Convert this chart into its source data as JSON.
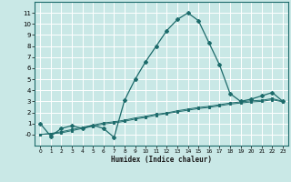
{
  "xlabel": "Humidex (Indice chaleur)",
  "ylabel": "",
  "xlim": [
    -0.5,
    23.5
  ],
  "ylim": [
    -1.0,
    12.0
  ],
  "yticks": [
    0,
    1,
    2,
    3,
    4,
    5,
    6,
    7,
    8,
    9,
    10,
    11
  ],
  "ytick_labels": [
    "-0",
    "1",
    "2",
    "3",
    "4",
    "5",
    "6",
    "7",
    "8",
    "9",
    "10",
    "11"
  ],
  "xticks": [
    0,
    1,
    2,
    3,
    4,
    5,
    6,
    7,
    8,
    9,
    10,
    11,
    12,
    13,
    14,
    15,
    16,
    17,
    18,
    19,
    20,
    21,
    22,
    23
  ],
  "bg_color": "#c9e8e6",
  "grid_color": "#ffffff",
  "line_color": "#1d6b6b",
  "series1_x": [
    0,
    1,
    2,
    3,
    4,
    5,
    6,
    7,
    8,
    9,
    10,
    11,
    12,
    13,
    14,
    15,
    16,
    17,
    18,
    19,
    20,
    21,
    22,
    23
  ],
  "series1_y": [
    1.0,
    -0.15,
    0.55,
    0.8,
    0.55,
    0.85,
    0.55,
    -0.25,
    3.1,
    5.0,
    6.6,
    8.0,
    9.4,
    10.4,
    11.0,
    10.3,
    8.3,
    6.3,
    3.7,
    3.0,
    3.2,
    3.5,
    3.8,
    3.0
  ],
  "series2_x": [
    0,
    1,
    2,
    3,
    4,
    5,
    6,
    7,
    8,
    9,
    10,
    11,
    12,
    13,
    14,
    15,
    16,
    17,
    18,
    19,
    20,
    21,
    22,
    23
  ],
  "series2_y": [
    0.0,
    0.1,
    0.25,
    0.45,
    0.65,
    0.85,
    1.05,
    1.15,
    1.3,
    1.5,
    1.65,
    1.85,
    1.95,
    2.15,
    2.3,
    2.45,
    2.55,
    2.7,
    2.85,
    2.95,
    3.05,
    3.1,
    3.25,
    3.0
  ],
  "series3_x": [
    0,
    2,
    3,
    4,
    5,
    6,
    7,
    8,
    9,
    10,
    11,
    12,
    13,
    14,
    15,
    16,
    17,
    18,
    19,
    20,
    21,
    22,
    23
  ],
  "series3_y": [
    0.0,
    0.15,
    0.35,
    0.55,
    0.75,
    0.95,
    1.05,
    1.2,
    1.4,
    1.55,
    1.75,
    1.9,
    2.05,
    2.2,
    2.35,
    2.45,
    2.6,
    2.75,
    2.85,
    2.95,
    3.0,
    3.15,
    2.95
  ]
}
